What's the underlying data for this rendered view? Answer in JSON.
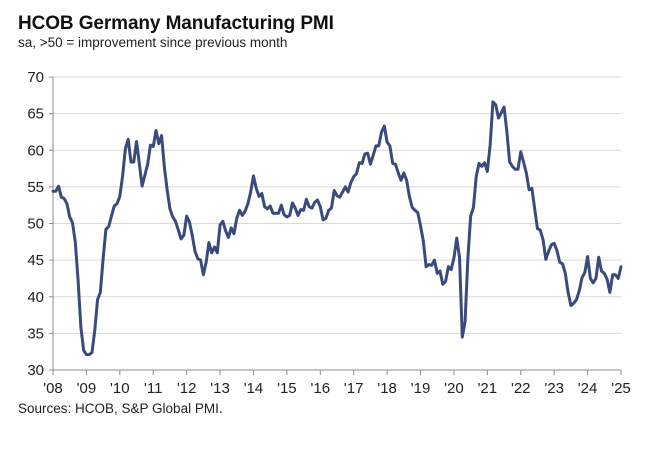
{
  "header": {
    "title": "HCOB Germany Manufacturing PMI",
    "subtitle": "sa, >50 = improvement since previous month"
  },
  "footer": {
    "source": "Sources: HCOB, S&P Global PMI."
  },
  "colors": {
    "line": "#3a4a7c",
    "grid": "#d9d9d9",
    "axis": "#8c8c8c"
  },
  "chart_data": {
    "type": "line",
    "title": "HCOB Germany Manufacturing PMI",
    "subtitle": "sa, >50 = improvement since previous month",
    "xlabel": "",
    "ylabel": "",
    "ylim": [
      30,
      70
    ],
    "yticks": [
      30,
      35,
      40,
      45,
      50,
      55,
      60,
      65,
      70
    ],
    "ytick_labels": [
      "30",
      "35",
      "40",
      "45",
      "50",
      "55",
      "60",
      "65",
      "70"
    ],
    "xticks": [
      "'08",
      "'09",
      "'10",
      "'11",
      "'12",
      "'13",
      "'14",
      "'15",
      "'16",
      "'17",
      "'18",
      "'19",
      "'20",
      "'21",
      "'22",
      "'23",
      "'24",
      "'25"
    ],
    "x_start": "2008-01",
    "x_end": "2025-02",
    "grid": true,
    "legend": "none",
    "series": [
      {
        "name": "Germany Manufacturing PMI",
        "frequency": "monthly",
        "start": "2008-01",
        "values": [
          54.4,
          54.4,
          55.1,
          53.6,
          53.4,
          52.7,
          50.9,
          50.1,
          47.5,
          42.3,
          35.9,
          32.7,
          32.1,
          32.1,
          32.4,
          35.4,
          39.6,
          40.6,
          45.2,
          49.2,
          49.6,
          51.0,
          52.4,
          52.7,
          53.7,
          56.5,
          60.2,
          61.5,
          58.4,
          58.4,
          61.2,
          58.2,
          55.1,
          56.6,
          58.1,
          60.7,
          60.5,
          62.7,
          60.9,
          62.0,
          57.7,
          54.6,
          52.0,
          50.9,
          50.3,
          49.1,
          47.9,
          48.4,
          51.0,
          50.2,
          48.4,
          46.2,
          45.2,
          45.0,
          43.0,
          44.7,
          47.4,
          46.0,
          46.8,
          46.0,
          49.8,
          50.3,
          49.0,
          48.1,
          49.4,
          48.6,
          50.7,
          51.8,
          51.1,
          51.7,
          52.7,
          54.3,
          56.5,
          54.8,
          53.7,
          54.1,
          52.3,
          52.0,
          52.4,
          51.4,
          51.4,
          51.4,
          52.5,
          51.2,
          50.9,
          51.1,
          52.8,
          52.1,
          51.1,
          51.9,
          51.8,
          53.3,
          52.3,
          52.1,
          52.9,
          53.2,
          52.3,
          50.5,
          50.7,
          51.8,
          52.1,
          54.5,
          53.8,
          53.6,
          54.3,
          55.0,
          54.3,
          55.6,
          56.4,
          56.8,
          58.3,
          58.2,
          59.5,
          59.6,
          58.1,
          59.3,
          60.6,
          60.6,
          62.5,
          63.3,
          61.1,
          60.6,
          58.2,
          58.1,
          56.9,
          55.9,
          56.9,
          55.9,
          53.7,
          52.2,
          51.8,
          51.5,
          49.7,
          47.6,
          44.1,
          44.4,
          44.3,
          45.0,
          43.2,
          43.5,
          41.7,
          42.1,
          44.1,
          43.7,
          45.3,
          48.0,
          45.4,
          34.5,
          36.6,
          45.2,
          51.0,
          52.2,
          56.4,
          58.2,
          57.8,
          58.3,
          57.1,
          60.7,
          66.6,
          66.2,
          64.4,
          65.1,
          65.9,
          62.6,
          58.4,
          57.8,
          57.4,
          57.4,
          59.8,
          58.4,
          56.9,
          54.6,
          54.8,
          52.0,
          49.3,
          49.1,
          47.8,
          45.1,
          46.2,
          47.1,
          47.3,
          46.3,
          44.7,
          44.5,
          43.2,
          40.6,
          38.8,
          39.1,
          39.6,
          40.8,
          42.6,
          43.3,
          45.5,
          42.5,
          41.9,
          42.5,
          45.4,
          43.5,
          43.2,
          42.4,
          40.6,
          43.0,
          43.0,
          42.5,
          44.1
        ]
      }
    ]
  }
}
